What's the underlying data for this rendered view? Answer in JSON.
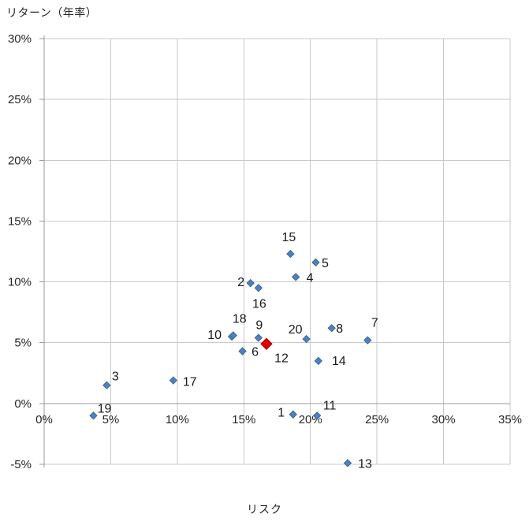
{
  "chart_data": {
    "type": "scatter",
    "title": "",
    "x_axis": {
      "title": "リスク",
      "min": 0,
      "max": 35,
      "tick_step": 5,
      "tick_labels": [
        "0%",
        "5%",
        "10%",
        "15%",
        "20%",
        "25%",
        "30%",
        "35%"
      ]
    },
    "y_axis": {
      "title": "リターン（年率）",
      "min": -5,
      "max": 30,
      "tick_step": 5,
      "tick_labels": [
        "-5%",
        "0%",
        "5%",
        "10%",
        "15%",
        "20%",
        "25%",
        "30%"
      ]
    },
    "grid": true,
    "legend": "none",
    "units": "percent",
    "series": [
      {
        "name": "assets",
        "marker": "diamond",
        "fill": "#4f81bd",
        "stroke": "#3a699b",
        "radius": 4.5,
        "points": [
          {
            "label": "1",
            "x": 18.7,
            "y": -0.9,
            "label_dx": -15,
            "label_dy": -2
          },
          {
            "label": "2",
            "x": 15.5,
            "y": 9.9,
            "label_dx": -12,
            "label_dy": -1
          },
          {
            "label": "3",
            "x": 4.7,
            "y": 1.5,
            "label_dx": 11,
            "label_dy": -11
          },
          {
            "label": "4",
            "x": 18.9,
            "y": 10.4,
            "label_dx": 18,
            "label_dy": 1
          },
          {
            "label": "5",
            "x": 20.4,
            "y": 11.6,
            "label_dx": 12,
            "label_dy": 1
          },
          {
            "label": "6",
            "x": 14.9,
            "y": 4.3,
            "label_dx": 16,
            "label_dy": 1
          },
          {
            "label": "7",
            "x": 24.3,
            "y": 5.2,
            "label_dx": 9,
            "label_dy": -22
          },
          {
            "label": "8",
            "x": 21.6,
            "y": 6.2,
            "label_dx": 10,
            "label_dy": 1
          },
          {
            "label": "9",
            "x": 16.1,
            "y": 5.4,
            "label_dx": 1,
            "label_dy": -16
          },
          {
            "label": "10",
            "x": 14.1,
            "y": 5.5,
            "label_dx": -22,
            "label_dy": -2
          },
          {
            "label": "11",
            "x": 20.5,
            "y": -1.0,
            "label_dx": 16,
            "label_dy": -13
          },
          {
            "label": "13",
            "x": 22.8,
            "y": -4.9,
            "label_dx": 22,
            "label_dy": 1
          },
          {
            "label": "14",
            "x": 20.6,
            "y": 3.5,
            "label_dx": 26,
            "label_dy": 0
          },
          {
            "label": "15",
            "x": 18.5,
            "y": 12.3,
            "label_dx": -2,
            "label_dy": -21
          },
          {
            "label": "16",
            "x": 16.1,
            "y": 9.5,
            "label_dx": 1,
            "label_dy": 20
          },
          {
            "label": "17",
            "x": 9.7,
            "y": 1.9,
            "label_dx": 21,
            "label_dy": 2
          },
          {
            "label": "18",
            "x": 14.2,
            "y": 5.6,
            "label_dx": 8,
            "label_dy": -21
          },
          {
            "label": "19",
            "x": 3.7,
            "y": -1.0,
            "label_dx": 14,
            "label_dy": -9
          },
          {
            "label": "20",
            "x": 19.7,
            "y": 5.3,
            "label_dx": -14,
            "label_dy": -12
          }
        ]
      },
      {
        "name": "highlight",
        "marker": "diamond",
        "fill": "#e00000",
        "stroke": "#a00000",
        "radius": 7,
        "points": [
          {
            "label": "12",
            "x": 16.7,
            "y": 4.9,
            "label_dx": 19,
            "label_dy": 18
          }
        ]
      }
    ],
    "colors": {
      "background": "#ffffff",
      "gridline": "#c9c9c9",
      "axis": "#999999",
      "tick_text": "#262626",
      "label_text": "#1a1a1a"
    }
  }
}
